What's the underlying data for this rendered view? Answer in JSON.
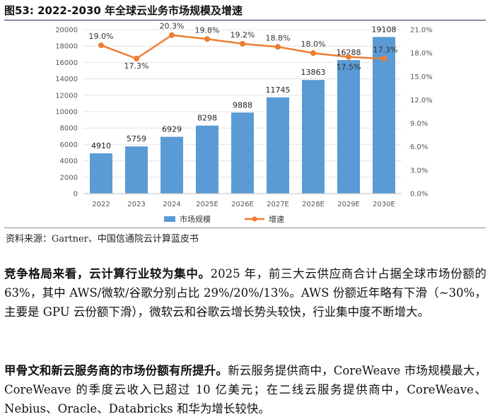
{
  "figure": {
    "title": "图53:  2022-2030 年全球云业务市场规模及增速",
    "source": "资料来源：Gartner、中国信通院云计算蓝皮书"
  },
  "chart_data": {
    "type": "bar",
    "categories": [
      "2022",
      "2023",
      "2024",
      "2025E",
      "2026E",
      "2027E",
      "2028E",
      "2029E",
      "2030E"
    ],
    "series": [
      {
        "name": "市场规模",
        "kind": "bar",
        "axis": "left",
        "color": "#5b9bd5",
        "values": [
          4910,
          5759,
          6929,
          8298,
          9888,
          11745,
          13863,
          16288,
          19108
        ]
      },
      {
        "name": "增速",
        "kind": "line",
        "axis": "right",
        "color": "#ed7d31",
        "values": [
          19.0,
          17.3,
          20.3,
          19.8,
          19.2,
          18.8,
          18.0,
          17.5,
          17.3
        ]
      }
    ],
    "left_ticks": [
      "0",
      "2000",
      "4000",
      "6000",
      "8000",
      "10000",
      "12000",
      "14000",
      "16000",
      "18000",
      "20000"
    ],
    "right_ticks": [
      "0.0%",
      "3.0%",
      "6.0%",
      "9.0%",
      "12.0%",
      "15.0%",
      "18.0%",
      "21.0%"
    ],
    "ylim_left": [
      0,
      20000
    ],
    "ylim_right": [
      0,
      21
    ],
    "legend_position": "bottom"
  },
  "paragraphs": [
    {
      "lead": "竞争格局来看，云计算行业较为集中。",
      "body": "2025 年，前三大云供应商合计占据全球市场份额的 63%，其中 AWS/微软/谷歌分别占比 29%/20%/13%。AWS 份额近年略有下滑（~30%，主要是 GPU 云份额下滑），微软云和谷歌云增长势头较快，行业集中度不断增大。"
    },
    {
      "lead": "甲骨文和新云服务商的市场份额有所提升。",
      "body": "新云服务提供商中，CoreWeave 市场规模最大，CoreWeave 的季度云收入已超过 10 亿美元；在二线云服务提供商中，CoreWeave、Nebius、Oracle、Databricks 和华为增长较快。"
    }
  ]
}
